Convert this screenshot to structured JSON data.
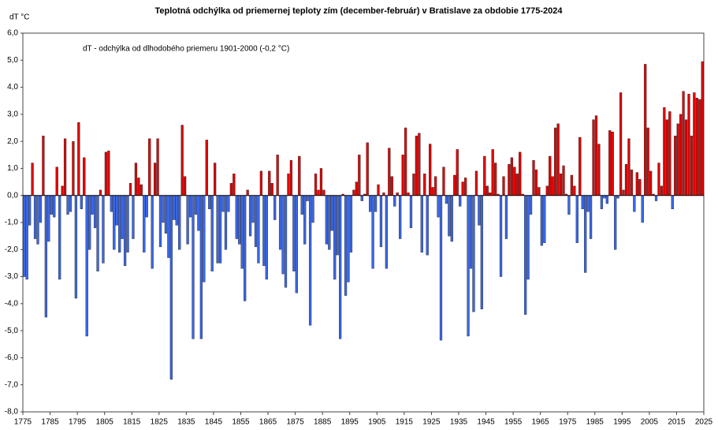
{
  "chart_data": {
    "type": "bar",
    "title": "Teplotná odchýlka od priemernej teploty zím (december-február) v Bratislave za obdobie 1775-2024",
    "ylabel": "dT °C",
    "annotation": "dT - odchýlka od dlhodobého priemeru 1901-2000 (-0,2 °C)",
    "positive_color": "#e00000",
    "negative_color": "#3a67e8",
    "xlim": [
      1775,
      2025
    ],
    "xticks": [
      1775,
      1785,
      1795,
      1805,
      1815,
      1825,
      1835,
      1845,
      1855,
      1865,
      1875,
      1885,
      1895,
      1905,
      1915,
      1925,
      1935,
      1945,
      1955,
      1965,
      1975,
      1985,
      1995,
      2005,
      2015,
      2025
    ],
    "ylim": [
      -8,
      6
    ],
    "yticks": [
      {
        "value": -8,
        "label": "-8,0"
      },
      {
        "value": -7,
        "label": "-7,0"
      },
      {
        "value": -6,
        "label": "-6,0"
      },
      {
        "value": -5,
        "label": "-5,0"
      },
      {
        "value": -4,
        "label": "-4,0"
      },
      {
        "value": -3,
        "label": "-3,0"
      },
      {
        "value": -2,
        "label": "-2,0"
      },
      {
        "value": -1,
        "label": "-1,0"
      },
      {
        "value": 0,
        "label": "0,0"
      },
      {
        "value": 1,
        "label": "1,0"
      },
      {
        "value": 2,
        "label": "2,0"
      },
      {
        "value": 3,
        "label": "3,0"
      },
      {
        "value": 4,
        "label": "4,0"
      },
      {
        "value": 5,
        "label": "5,0"
      },
      {
        "value": 6,
        "label": "6,0"
      }
    ],
    "x": [
      1775,
      1776,
      1777,
      1778,
      1779,
      1780,
      1781,
      1782,
      1783,
      1784,
      1785,
      1786,
      1787,
      1788,
      1789,
      1790,
      1791,
      1792,
      1793,
      1794,
      1795,
      1796,
      1797,
      1798,
      1799,
      1800,
      1801,
      1802,
      1803,
      1804,
      1805,
      1806,
      1807,
      1808,
      1809,
      1810,
      1811,
      1812,
      1813,
      1814,
      1815,
      1816,
      1817,
      1818,
      1819,
      1820,
      1821,
      1822,
      1823,
      1824,
      1825,
      1826,
      1827,
      1828,
      1829,
      1830,
      1831,
      1832,
      1833,
      1834,
      1835,
      1836,
      1837,
      1838,
      1839,
      1840,
      1841,
      1842,
      1843,
      1844,
      1845,
      1846,
      1847,
      1848,
      1849,
      1850,
      1851,
      1852,
      1853,
      1854,
      1855,
      1856,
      1857,
      1858,
      1859,
      1860,
      1861,
      1862,
      1863,
      1864,
      1865,
      1866,
      1867,
      1868,
      1869,
      1870,
      1871,
      1872,
      1873,
      1874,
      1875,
      1876,
      1877,
      1878,
      1879,
      1880,
      1881,
      1882,
      1883,
      1884,
      1885,
      1886,
      1887,
      1888,
      1889,
      1890,
      1891,
      1892,
      1893,
      1894,
      1895,
      1896,
      1897,
      1898,
      1899,
      1900,
      1901,
      1902,
      1903,
      1904,
      1905,
      1906,
      1907,
      1908,
      1909,
      1910,
      1911,
      1912,
      1913,
      1914,
      1915,
      1916,
      1917,
      1918,
      1919,
      1920,
      1921,
      1922,
      1923,
      1924,
      1925,
      1926,
      1927,
      1928,
      1929,
      1930,
      1931,
      1932,
      1933,
      1934,
      1935,
      1936,
      1937,
      1938,
      1939,
      1940,
      1941,
      1942,
      1943,
      1944,
      1945,
      1946,
      1947,
      1948,
      1949,
      1950,
      1951,
      1952,
      1953,
      1954,
      1955,
      1956,
      1957,
      1958,
      1959,
      1960,
      1961,
      1962,
      1963,
      1964,
      1965,
      1966,
      1967,
      1968,
      1969,
      1970,
      1971,
      1972,
      1973,
      1974,
      1975,
      1976,
      1977,
      1978,
      1979,
      1980,
      1981,
      1982,
      1983,
      1984,
      1985,
      1986,
      1987,
      1988,
      1989,
      1990,
      1991,
      1992,
      1993,
      1994,
      1995,
      1996,
      1997,
      1998,
      1999,
      2000,
      2001,
      2002,
      2003,
      2004,
      2005,
      2006,
      2007,
      2008,
      2009,
      2010,
      2011,
      2012,
      2013,
      2014,
      2015,
      2016,
      2017,
      2018,
      2019,
      2020,
      2021,
      2022,
      2023,
      2024
    ],
    "values": [
      -3.0,
      -3.1,
      -1.1,
      1.2,
      -1.6,
      -1.8,
      -1.0,
      2.2,
      -4.5,
      -1.7,
      -0.7,
      -0.8,
      1.05,
      -3.1,
      0.35,
      2.1,
      -0.7,
      -0.6,
      2.0,
      -3.8,
      2.7,
      -0.5,
      1.4,
      -5.2,
      -2.0,
      -0.7,
      -1.2,
      -2.8,
      0.2,
      -2.5,
      1.6,
      1.65,
      -0.6,
      -2.0,
      -1.1,
      -2.1,
      -1.6,
      -2.6,
      -2.1,
      0.45,
      -1.6,
      1.2,
      0.65,
      0.4,
      -2.1,
      -0.8,
      2.1,
      -2.7,
      1.2,
      2.1,
      -1.9,
      -1.0,
      -1.4,
      -2.3,
      -6.8,
      -0.9,
      -1.1,
      -2.0,
      2.6,
      0.7,
      -1.8,
      -0.8,
      -5.3,
      -0.7,
      -1.3,
      -5.3,
      -3.2,
      2.05,
      -0.5,
      -2.8,
      1.2,
      -2.5,
      -2.5,
      -0.6,
      -2.0,
      -0.6,
      0.45,
      0.8,
      -1.6,
      -1.8,
      -2.7,
      -3.9,
      0.2,
      -1.5,
      -1.0,
      -1.9,
      -2.5,
      0.9,
      -2.6,
      -3.1,
      0.9,
      0.45,
      -0.9,
      1.5,
      -2.0,
      -2.9,
      -3.4,
      0.8,
      1.3,
      -2.8,
      -3.6,
      1.45,
      -0.7,
      -1.8,
      -0.2,
      -4.8,
      -1.0,
      0.8,
      0.2,
      1.0,
      0.2,
      -1.8,
      -2.0,
      -1.3,
      -3.1,
      -2.2,
      -5.3,
      0.05,
      -3.7,
      -3.2,
      -2.1,
      0.2,
      0.5,
      1.5,
      -0.2,
      0.05,
      1.95,
      -0.6,
      -2.7,
      -0.6,
      0.4,
      -1.9,
      0.1,
      -2.7,
      1.75,
      0.7,
      -0.4,
      0.1,
      -1.6,
      1.5,
      2.5,
      0.1,
      -1.2,
      0.8,
      2.2,
      2.3,
      -2.1,
      0.8,
      -2.2,
      1.9,
      0.3,
      0.7,
      -0.8,
      -5.35,
      1.05,
      -0.3,
      -1.5,
      -1.7,
      0.75,
      1.7,
      -0.4,
      0.5,
      0.65,
      -5.2,
      -2.7,
      -4.3,
      0.9,
      -1.1,
      -4.2,
      1.45,
      0.35,
      0.1,
      1.7,
      1.2,
      0.05,
      -3.0,
      0.7,
      -1.6,
      1.15,
      1.4,
      1.05,
      0.8,
      1.6,
      0.05,
      -4.4,
      -3.1,
      -0.7,
      1.3,
      0.95,
      0.3,
      -1.85,
      -1.75,
      0.35,
      1.45,
      0.7,
      2.5,
      2.65,
      0.8,
      1.1,
      0.05,
      -0.7,
      0.75,
      0.35,
      -1.75,
      2.15,
      -0.5,
      -2.85,
      -0.6,
      -1.6,
      2.8,
      2.95,
      1.9,
      -0.5,
      -0.1,
      -0.3,
      2.4,
      2.35,
      -2.0,
      -0.1,
      3.8,
      0.2,
      1.15,
      2.1,
      0.95,
      -0.6,
      0.85,
      0.6,
      -1.0,
      4.85,
      2.5,
      0.9,
      0.05,
      -0.2,
      1.2,
      0.35,
      3.25,
      2.8,
      3.1,
      -0.5,
      2.2,
      2.65,
      3.0,
      3.85,
      2.8,
      3.75,
      2.2,
      3.8,
      3.6,
      3.55,
      4.95
    ]
  }
}
